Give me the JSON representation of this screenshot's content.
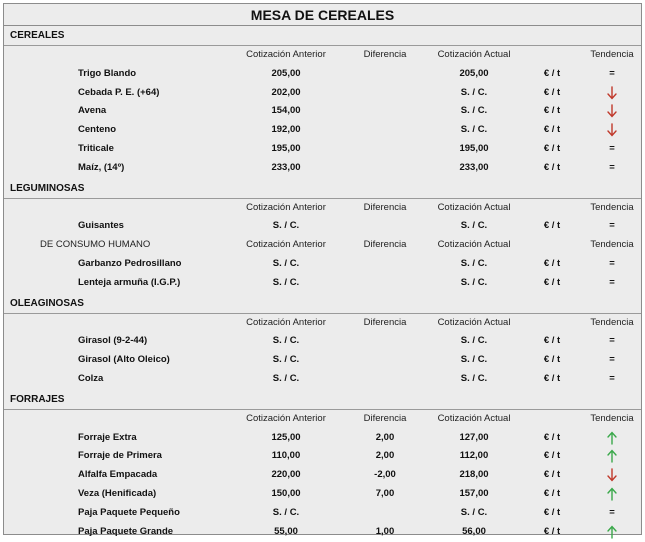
{
  "title": "MESA DE CEREALES",
  "columns": {
    "prev": "Cotización Anterior",
    "diff": "Diferencia",
    "act": "Cotización Actual",
    "trend": "Tendencia"
  },
  "unit": "€ / t",
  "colors": {
    "up": "#3aa84a",
    "down": "#c0392b",
    "frame": "#8c8c8c",
    "bg": "#ececec"
  },
  "sections": [
    {
      "label": "CEREALES",
      "groups": [
        {
          "sub": "",
          "rows": [
            {
              "name": "Trigo Blando",
              "prev": "205,00",
              "diff": "",
              "act": "205,00",
              "trend": "="
            },
            {
              "name": "Cebada P. E. (+64)",
              "prev": "202,00",
              "diff": "",
              "act": "S. / C.",
              "trend": "down"
            },
            {
              "name": "Avena",
              "prev": "154,00",
              "diff": "",
              "act": "S. / C.",
              "trend": "down"
            },
            {
              "name": "Centeno",
              "prev": "192,00",
              "diff": "",
              "act": "S. / C.",
              "trend": "down"
            },
            {
              "name": "Triticale",
              "prev": "195,00",
              "diff": "",
              "act": "195,00",
              "trend": "="
            },
            {
              "name": "Maíz, (14º)",
              "prev": "233,00",
              "diff": "",
              "act": "233,00",
              "trend": "="
            }
          ]
        }
      ]
    },
    {
      "label": "LEGUMINOSAS",
      "groups": [
        {
          "sub": "",
          "rows": [
            {
              "name": "Guisantes",
              "prev": "S. / C.",
              "diff": "",
              "act": "S. / C.",
              "trend": "="
            }
          ]
        },
        {
          "sub": "DE CONSUMO HUMANO",
          "rows": [
            {
              "name": "Garbanzo Pedrosillano",
              "prev": "S. / C.",
              "diff": "",
              "act": "S. / C.",
              "trend": "="
            },
            {
              "name": "Lenteja armuña (I.G.P.)",
              "prev": "S. / C.",
              "diff": "",
              "act": "S. / C.",
              "trend": "="
            }
          ]
        }
      ]
    },
    {
      "label": "OLEAGINOSAS",
      "groups": [
        {
          "sub": "",
          "rows": [
            {
              "name": "Girasol (9-2-44)",
              "prev": "S. / C.",
              "diff": "",
              "act": "S. / C.",
              "trend": "="
            },
            {
              "name": "Girasol (Alto Oleico)",
              "prev": "S. / C.",
              "diff": "",
              "act": "S. / C.",
              "trend": "="
            },
            {
              "name": "Colza",
              "prev": "S. / C.",
              "diff": "",
              "act": "S. / C.",
              "trend": "="
            }
          ]
        }
      ]
    },
    {
      "label": "FORRAJES",
      "groups": [
        {
          "sub": "",
          "rows": [
            {
              "name": "Forraje Extra",
              "prev": "125,00",
              "diff": "2,00",
              "act": "127,00",
              "trend": "up"
            },
            {
              "name": "Forraje de Primera",
              "prev": "110,00",
              "diff": "2,00",
              "act": "112,00",
              "trend": "up"
            },
            {
              "name": "Alfalfa Empacada",
              "prev": "220,00",
              "diff": "-2,00",
              "act": "218,00",
              "trend": "down"
            },
            {
              "name": "Veza (Henificada)",
              "prev": "150,00",
              "diff": "7,00",
              "act": "157,00",
              "trend": "up"
            },
            {
              "name": "Paja Paquete Pequeño",
              "prev": "S. / C.",
              "diff": "",
              "act": "S. / C.",
              "trend": "="
            },
            {
              "name": "Paja Paquete Grande",
              "prev": "55,00",
              "diff": "1,00",
              "act": "56,00",
              "trend": "up"
            }
          ]
        }
      ]
    }
  ]
}
